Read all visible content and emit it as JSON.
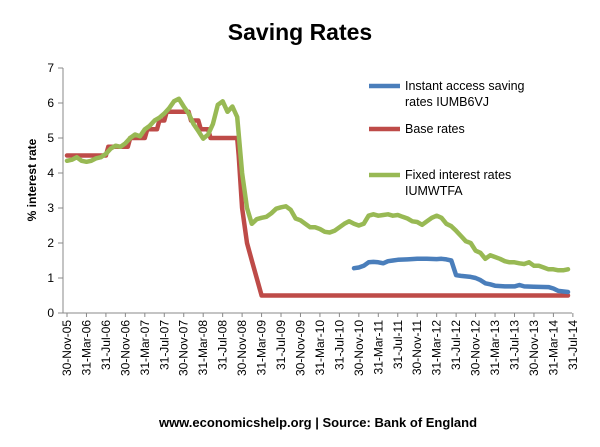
{
  "chart_data": {
    "type": "line",
    "title": "Saving Rates",
    "ylabel": "% interest rate",
    "xlabel": "",
    "ylim": [
      0,
      7
    ],
    "yticks": [
      0,
      1,
      2,
      3,
      4,
      5,
      6,
      7
    ],
    "grid": false,
    "source": "www.economicshelp.org | Source: Bank of England",
    "x_tick_labels": [
      "30-Nov-05",
      "31-Mar-06",
      "31-Jul-06",
      "30-Nov-06",
      "31-Mar-07",
      "31-Jul-07",
      "30-Nov-07",
      "31-Mar-08",
      "31-Jul-08",
      "30-Nov-08",
      "31-Mar-09",
      "31-Jul-09",
      "30-Nov-09",
      "31-Mar-10",
      "31-Jul-10",
      "30-Nov-10",
      "31-Mar-11",
      "31-Jul-11",
      "30-Nov-11",
      "31-Mar-12",
      "31-Jul-12",
      "30-Nov-12",
      "31-Mar-13",
      "31-Jul-13",
      "30-Nov-13",
      "31-Mar-14",
      "31-Jul-14"
    ],
    "x_unit": "months since Nov-2005",
    "series": [
      {
        "name": "Instant access saving rates IUMB6VJ",
        "legend_lines": [
          "Instant access saving",
          "rates IUMB6VJ"
        ],
        "color": "#4a7ebb",
        "points": [
          [
            59,
            1.28
          ],
          [
            60,
            1.3
          ],
          [
            61,
            1.35
          ],
          [
            62,
            1.45
          ],
          [
            63,
            1.46
          ],
          [
            64,
            1.45
          ],
          [
            65,
            1.42
          ],
          [
            66,
            1.48
          ],
          [
            67,
            1.5
          ],
          [
            68,
            1.52
          ],
          [
            70,
            1.53
          ],
          [
            72,
            1.55
          ],
          [
            74,
            1.55
          ],
          [
            76,
            1.54
          ],
          [
            77,
            1.55
          ],
          [
            78,
            1.53
          ],
          [
            79,
            1.5
          ],
          [
            80,
            1.08
          ],
          [
            81,
            1.06
          ],
          [
            83,
            1.03
          ],
          [
            84,
            1.0
          ],
          [
            85,
            0.94
          ],
          [
            86,
            0.85
          ],
          [
            87,
            0.82
          ],
          [
            88,
            0.78
          ],
          [
            90,
            0.76
          ],
          [
            92,
            0.76
          ],
          [
            93,
            0.8
          ],
          [
            94,
            0.76
          ],
          [
            96,
            0.75
          ],
          [
            99,
            0.74
          ],
          [
            100,
            0.7
          ],
          [
            101,
            0.63
          ],
          [
            103,
            0.6
          ]
        ]
      },
      {
        "name": "Base rates",
        "legend_lines": [
          "Base rates"
        ],
        "color": "#be4b48",
        "points": [
          [
            0,
            4.5
          ],
          [
            8,
            4.5
          ],
          [
            8.5,
            4.75
          ],
          [
            12.5,
            4.75
          ],
          [
            13,
            5.0
          ],
          [
            16,
            5.0
          ],
          [
            16.5,
            5.25
          ],
          [
            18.5,
            5.25
          ],
          [
            19,
            5.5
          ],
          [
            20,
            5.5
          ],
          [
            20.5,
            5.75
          ],
          [
            25,
            5.75
          ],
          [
            25.5,
            5.5
          ],
          [
            27,
            5.5
          ],
          [
            27.5,
            5.25
          ],
          [
            29,
            5.25
          ],
          [
            29.5,
            5.0
          ],
          [
            35,
            5.0
          ],
          [
            35.3,
            4.5
          ],
          [
            36,
            3.0
          ],
          [
            37,
            2.0
          ],
          [
            38,
            1.5
          ],
          [
            39,
            1.0
          ],
          [
            40,
            0.5
          ],
          [
            103,
            0.5
          ]
        ]
      },
      {
        "name": "Fixed interest rates IUMWTFA",
        "legend_lines": [
          "Fixed interest rates",
          "IUMWTFA"
        ],
        "color": "#98b954",
        "points": [
          [
            0,
            4.35
          ],
          [
            1,
            4.38
          ],
          [
            2,
            4.45
          ],
          [
            3,
            4.35
          ],
          [
            4,
            4.32
          ],
          [
            5,
            4.35
          ],
          [
            6,
            4.42
          ],
          [
            7,
            4.45
          ],
          [
            8,
            4.55
          ],
          [
            9,
            4.7
          ],
          [
            10,
            4.78
          ],
          [
            11,
            4.75
          ],
          [
            12,
            4.85
          ],
          [
            13,
            5.0
          ],
          [
            14,
            5.1
          ],
          [
            15,
            5.05
          ],
          [
            16,
            5.25
          ],
          [
            17,
            5.35
          ],
          [
            18,
            5.5
          ],
          [
            19,
            5.58
          ],
          [
            20,
            5.7
          ],
          [
            21,
            5.85
          ],
          [
            22,
            6.05
          ],
          [
            23,
            6.12
          ],
          [
            24,
            5.9
          ],
          [
            25,
            5.7
          ],
          [
            26,
            5.4
          ],
          [
            27,
            5.2
          ],
          [
            28,
            4.98
          ],
          [
            29,
            5.1
          ],
          [
            30,
            5.4
          ],
          [
            31,
            5.95
          ],
          [
            32,
            6.05
          ],
          [
            33,
            5.75
          ],
          [
            34,
            5.9
          ],
          [
            35,
            5.6
          ],
          [
            36,
            4.0
          ],
          [
            37,
            3.0
          ],
          [
            38,
            2.55
          ],
          [
            39,
            2.68
          ],
          [
            40,
            2.72
          ],
          [
            41,
            2.75
          ],
          [
            42,
            2.85
          ],
          [
            43,
            2.98
          ],
          [
            44,
            3.02
          ],
          [
            45,
            3.05
          ],
          [
            46,
            2.95
          ],
          [
            47,
            2.7
          ],
          [
            48,
            2.65
          ],
          [
            49,
            2.55
          ],
          [
            50,
            2.45
          ],
          [
            51,
            2.45
          ],
          [
            52,
            2.4
          ],
          [
            53,
            2.32
          ],
          [
            54,
            2.3
          ],
          [
            55,
            2.35
          ],
          [
            56,
            2.45
          ],
          [
            57,
            2.55
          ],
          [
            58,
            2.62
          ],
          [
            59,
            2.55
          ],
          [
            60,
            2.5
          ],
          [
            61,
            2.55
          ],
          [
            62,
            2.78
          ],
          [
            63,
            2.82
          ],
          [
            64,
            2.78
          ],
          [
            65,
            2.8
          ],
          [
            66,
            2.82
          ],
          [
            67,
            2.78
          ],
          [
            68,
            2.8
          ],
          [
            69,
            2.75
          ],
          [
            70,
            2.7
          ],
          [
            71,
            2.62
          ],
          [
            72,
            2.6
          ],
          [
            73,
            2.52
          ],
          [
            74,
            2.62
          ],
          [
            75,
            2.72
          ],
          [
            76,
            2.78
          ],
          [
            77,
            2.72
          ],
          [
            78,
            2.55
          ],
          [
            79,
            2.48
          ],
          [
            80,
            2.35
          ],
          [
            81,
            2.2
          ],
          [
            82,
            2.05
          ],
          [
            83,
            2.0
          ],
          [
            84,
            1.78
          ],
          [
            85,
            1.72
          ],
          [
            86,
            1.55
          ],
          [
            87,
            1.65
          ],
          [
            88,
            1.6
          ],
          [
            89,
            1.55
          ],
          [
            90,
            1.48
          ],
          [
            91,
            1.45
          ],
          [
            92,
            1.45
          ],
          [
            93,
            1.42
          ],
          [
            94,
            1.4
          ],
          [
            95,
            1.45
          ],
          [
            96,
            1.35
          ],
          [
            97,
            1.35
          ],
          [
            98,
            1.3
          ],
          [
            99,
            1.25
          ],
          [
            100,
            1.25
          ],
          [
            101,
            1.22
          ],
          [
            102,
            1.22
          ],
          [
            103,
            1.25
          ]
        ]
      }
    ]
  }
}
